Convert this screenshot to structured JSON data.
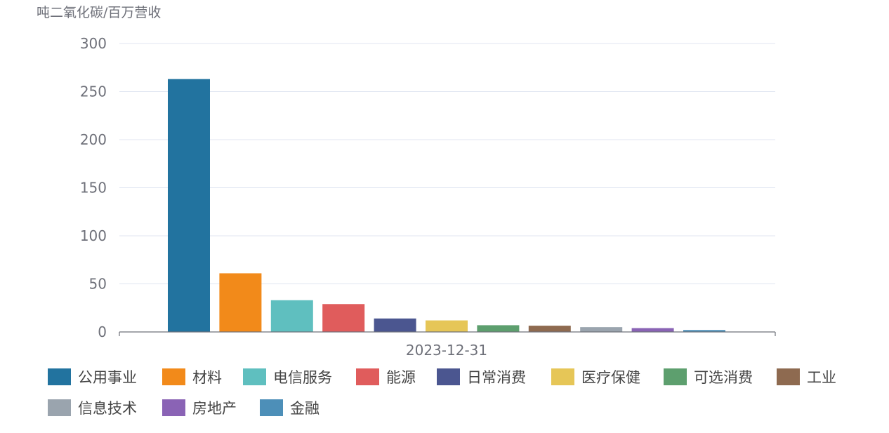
{
  "chart_data": {
    "type": "bar",
    "title": "",
    "ylabel": "吨二氧化碳/百万营收",
    "xlabel": "",
    "x_category": "2023-12-31",
    "ylim": [
      0,
      300
    ],
    "yticks": [
      0,
      50,
      100,
      150,
      200,
      250,
      300
    ],
    "grid": true,
    "legend_position": "bottom",
    "series": [
      {
        "name": "公用事业",
        "value": 263,
        "color": "#22739f"
      },
      {
        "name": "材料",
        "value": 61,
        "color": "#f28a1a"
      },
      {
        "name": "电信服务",
        "value": 33,
        "color": "#5fbfbf"
      },
      {
        "name": "能源",
        "value": 29,
        "color": "#e05c5c"
      },
      {
        "name": "日常消费",
        "value": 14,
        "color": "#4b5690"
      },
      {
        "name": "医疗保健",
        "value": 12,
        "color": "#e6c657"
      },
      {
        "name": "可选消费",
        "value": 7,
        "color": "#5d9f6e"
      },
      {
        "name": "工业",
        "value": 6.5,
        "color": "#8e6a50"
      },
      {
        "name": "信息技术",
        "value": 5,
        "color": "#9aa4ae"
      },
      {
        "name": "房地产",
        "value": 4,
        "color": "#8a63b5"
      },
      {
        "name": "金融",
        "value": 2,
        "color": "#4d8fb8"
      }
    ]
  }
}
